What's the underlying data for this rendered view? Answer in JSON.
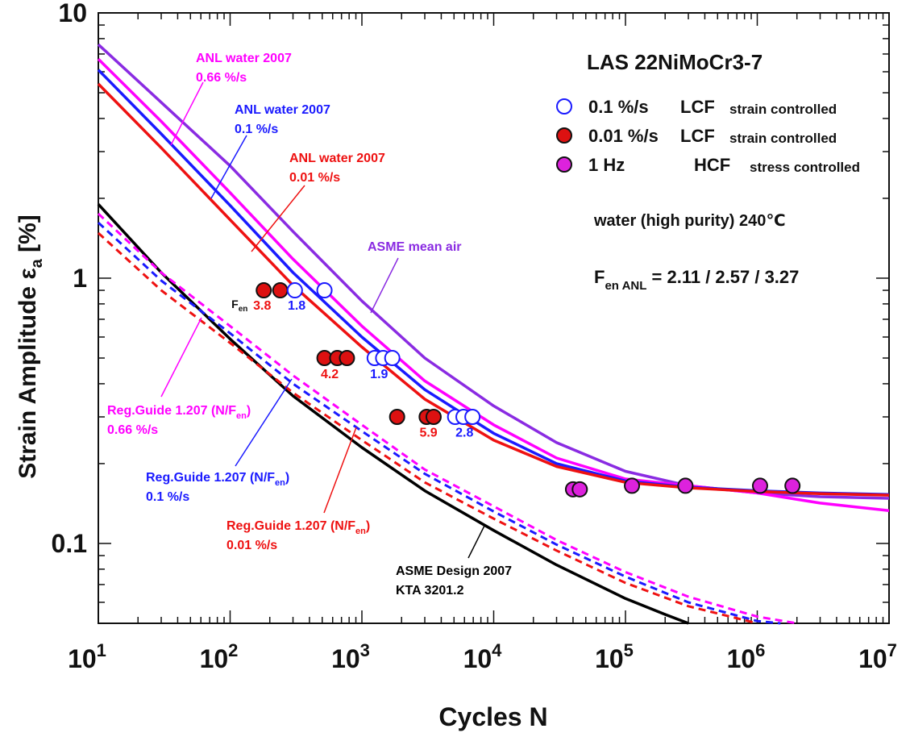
{
  "chart_data": {
    "type": "scatter",
    "title": "LAS 22NiMoCr3-7",
    "xlabel": "Cycles N",
    "ylabel_main": "Strain Amplitude  ε",
    "ylabel_sub": "a",
    "ylabel_unit": "[%]",
    "xscale": "log",
    "yscale": "log",
    "xlim": [
      10,
      10000000
    ],
    "ylim": [
      0.05,
      10
    ],
    "x_ticks": [
      {
        "base": "10",
        "exp": "1"
      },
      {
        "base": "10",
        "exp": "2"
      },
      {
        "base": "10",
        "exp": "3"
      },
      {
        "base": "10",
        "exp": "4"
      },
      {
        "base": "10",
        "exp": "5"
      },
      {
        "base": "10",
        "exp": "6"
      },
      {
        "base": "10",
        "exp": "7"
      }
    ],
    "y_ticks": [
      "0.1",
      "1",
      "10"
    ],
    "colors": {
      "asme_air": "#8a2be2",
      "water_066": "#ff00ff",
      "water_01": "#1a1aff",
      "water_001": "#ee1111",
      "design": "#000000",
      "lcf_fast_fill": "#ffffff",
      "lcf_fast_edge": "#1a1aff",
      "lcf_slow_fill": "#dd1111",
      "hcf_fill": "#dd22dd"
    },
    "series": [
      {
        "name": "ASME mean air",
        "style": "solid",
        "color_key": "asme_air",
        "x": [
          10,
          30,
          100,
          300,
          1000,
          3000,
          10000,
          30000,
          100000,
          300000,
          1000000,
          3000000,
          10000000
        ],
        "y": [
          7.6,
          4.6,
          2.65,
          1.5,
          0.82,
          0.5,
          0.33,
          0.24,
          0.187,
          0.165,
          0.155,
          0.15,
          0.148
        ]
      },
      {
        "name": "ANL water 2007 0.66 %/s",
        "style": "solid",
        "color_key": "water_066",
        "x": [
          10,
          30,
          100,
          300,
          1000,
          3000,
          10000,
          30000,
          100000,
          300000,
          1000000,
          3000000,
          10000000
        ],
        "y": [
          6.7,
          3.9,
          2.1,
          1.18,
          0.66,
          0.41,
          0.28,
          0.21,
          0.175,
          0.165,
          0.155,
          0.142,
          0.133
        ]
      },
      {
        "name": "ANL water 2007 0.1 %/s",
        "style": "solid",
        "color_key": "water_01",
        "x": [
          10,
          30,
          100,
          300,
          1000,
          3000,
          10000,
          30000,
          100000,
          300000,
          1000000,
          3000000,
          10000000
        ],
        "y": [
          6.1,
          3.5,
          1.88,
          1.05,
          0.6,
          0.38,
          0.26,
          0.2,
          0.172,
          0.163,
          0.158,
          0.155,
          0.153
        ]
      },
      {
        "name": "ANL water 2007 0.01 %/s",
        "style": "solid",
        "color_key": "water_001",
        "x": [
          10,
          30,
          100,
          300,
          1000,
          3000,
          10000,
          30000,
          100000,
          300000,
          1000000,
          3000000,
          10000000
        ],
        "y": [
          5.4,
          3.1,
          1.66,
          0.94,
          0.55,
          0.35,
          0.245,
          0.195,
          0.17,
          0.162,
          0.157,
          0.154,
          0.152
        ]
      },
      {
        "name": "ASME Design 2007 KTA 3201.2",
        "style": "solid",
        "color_key": "design",
        "x": [
          10,
          30,
          100,
          300,
          1000,
          3000,
          10000,
          30000,
          100000,
          200000,
          300000
        ],
        "y": [
          1.9,
          1.05,
          0.59,
          0.36,
          0.23,
          0.158,
          0.112,
          0.083,
          0.062,
          0.054,
          0.05
        ]
      },
      {
        "name": "Reg.Guide 1.207 (N/Fen) 0.66 %/s",
        "style": "dashed",
        "color_key": "water_066",
        "x": [
          10,
          30,
          100,
          300,
          1000,
          3000,
          10000,
          30000,
          100000,
          300000,
          1000000,
          2000000
        ],
        "y": [
          1.75,
          1.05,
          0.66,
          0.43,
          0.28,
          0.19,
          0.138,
          0.103,
          0.078,
          0.063,
          0.053,
          0.05
        ]
      },
      {
        "name": "Reg.Guide 1.207 (N/Fen) 0.1 %/s",
        "style": "dashed",
        "color_key": "water_01",
        "x": [
          10,
          30,
          100,
          300,
          1000,
          3000,
          10000,
          30000,
          100000,
          300000,
          1000000,
          1500000
        ],
        "y": [
          1.62,
          0.98,
          0.62,
          0.4,
          0.265,
          0.183,
          0.132,
          0.099,
          0.075,
          0.06,
          0.051,
          0.05
        ]
      },
      {
        "name": "Reg.Guide 1.207 (N/Fen) 0.01 %/s",
        "style": "dashed",
        "color_key": "water_001",
        "x": [
          10,
          30,
          100,
          300,
          1000,
          3000,
          10000,
          30000,
          100000,
          300000,
          1000000
        ],
        "y": [
          1.48,
          0.9,
          0.57,
          0.37,
          0.245,
          0.17,
          0.124,
          0.094,
          0.071,
          0.058,
          0.05
        ]
      }
    ],
    "points": {
      "lcf_fast": {
        "label": "0.1 %/s",
        "test": "LCF",
        "mode": "strain controlled",
        "x": [
          310,
          520,
          1250,
          1450,
          1700,
          5100,
          5900,
          6900
        ],
        "y": [
          0.9,
          0.9,
          0.5,
          0.5,
          0.5,
          0.3,
          0.3,
          0.3
        ]
      },
      "lcf_slow": {
        "label": "0.01 %/s",
        "test": "LCF",
        "mode": "strain controlled",
        "x": [
          180,
          240,
          520,
          650,
          770,
          1850,
          3100,
          3500
        ],
        "y": [
          0.9,
          0.9,
          0.5,
          0.5,
          0.5,
          0.3,
          0.3,
          0.3
        ]
      },
      "hcf": {
        "label": "1 Hz",
        "test": "HCF",
        "mode": "stress controlled",
        "x": [
          40000,
          45000,
          112000,
          285000,
          1050000,
          1850000
        ],
        "y": [
          0.16,
          0.16,
          0.165,
          0.165,
          0.165,
          0.165
        ]
      }
    },
    "fen_labels": [
      {
        "text": "3.8",
        "x": 175,
        "y": 0.76,
        "color_key": "water_001"
      },
      {
        "text": "1.8",
        "x": 320,
        "y": 0.76,
        "color_key": "water_01"
      },
      {
        "text": "4.2",
        "x": 570,
        "y": 0.42,
        "color_key": "water_001"
      },
      {
        "text": "1.9",
        "x": 1350,
        "y": 0.42,
        "color_key": "water_01"
      },
      {
        "text": "5.9",
        "x": 3200,
        "y": 0.253,
        "color_key": "water_001"
      },
      {
        "text": "2.8",
        "x": 6000,
        "y": 0.253,
        "color_key": "water_01"
      }
    ],
    "fen_marker": {
      "main": "F",
      "sub": "en",
      "x": 118,
      "y": 0.76
    },
    "annotations": [
      {
        "key": "anl066",
        "lines": [
          "ANL water 2007",
          "0.66 %/s"
        ],
        "color_key": "water_066"
      },
      {
        "key": "anl01",
        "lines": [
          "ANL water 2007",
          "0.1 %/s"
        ],
        "color_key": "water_01"
      },
      {
        "key": "anl001",
        "lines": [
          "ANL water 2007",
          "0.01 %/s"
        ],
        "color_key": "water_001"
      },
      {
        "key": "asme_air",
        "lines": [
          "ASME mean air"
        ],
        "color_key": "asme_air"
      },
      {
        "key": "rg066",
        "lines": [
          "Reg.Guide 1.207 (N/F",
          "0.66 %/s"
        ],
        "sub": "en",
        "close": ")",
        "color_key": "water_066"
      },
      {
        "key": "rg01",
        "lines": [
          "Reg.Guide 1.207 (N/F",
          "0.1 %/s"
        ],
        "sub": "en",
        "close": ")",
        "color_key": "water_01"
      },
      {
        "key": "rg001",
        "lines": [
          "Reg.Guide 1.207 (N/F",
          "0.01 %/s"
        ],
        "sub": "en",
        "close": ")",
        "color_key": "water_001"
      },
      {
        "key": "design",
        "lines": [
          "ASME Design 2007",
          "KTA 3201.2"
        ],
        "color_key": "design"
      }
    ],
    "legend_entries": [
      {
        "rate": "0.1 %/s",
        "test": "LCF",
        "mode": "strain controlled",
        "marker": "lcf_fast"
      },
      {
        "rate": "0.01 %/s",
        "test": "LCF",
        "mode": "strain controlled",
        "marker": "lcf_slow"
      },
      {
        "rate": "1 Hz",
        "test": "HCF",
        "mode": "stress controlled",
        "marker": "hcf"
      }
    ],
    "condition_text": "water (high purity)  240℃",
    "fen_summary": {
      "main": "F",
      "sub": "en ANL",
      "rest": " = 2.11 / 2.57 / 3.27"
    }
  }
}
